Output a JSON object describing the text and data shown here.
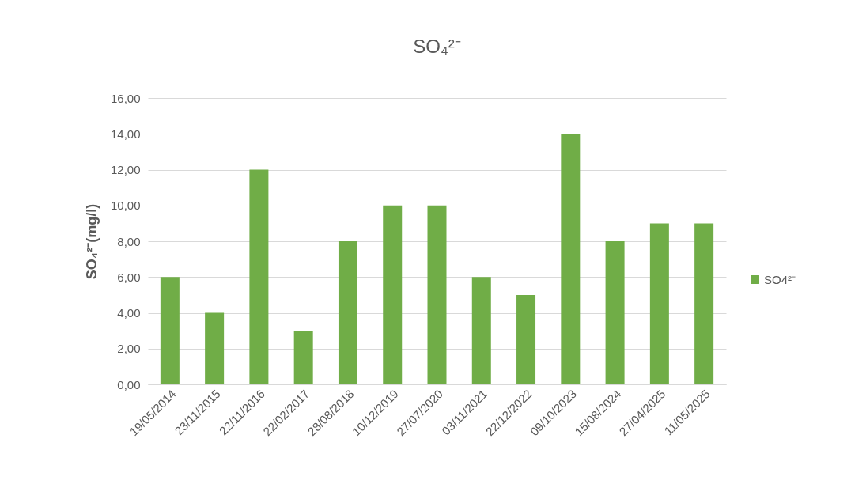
{
  "chart_data": {
    "type": "bar",
    "title": "SO₄²⁻",
    "ylabel": "SO₄²⁻(mg/l)",
    "categories": [
      "19/05/2014",
      "23/11/2015",
      "22/11/2016",
      "22/02/2017",
      "28/08/2018",
      "10/12/2019",
      "27/07/2020",
      "03/11/2021",
      "22/12/2022",
      "09/10/2023",
      "15/08/2024",
      "27/04/2025",
      "11/05/2025"
    ],
    "series": [
      {
        "name": "SO4²⁻",
        "color": "#70ad47",
        "values": [
          6,
          4,
          12,
          3,
          8,
          10,
          10,
          6,
          5,
          14,
          8,
          9,
          9
        ]
      }
    ],
    "ylim": [
      0,
      16
    ],
    "yticks": [
      {
        "value": 0,
        "label": "0,00"
      },
      {
        "value": 2,
        "label": "2,00"
      },
      {
        "value": 4,
        "label": "4,00"
      },
      {
        "value": 6,
        "label": "6,00"
      },
      {
        "value": 8,
        "label": "8,00"
      },
      {
        "value": 10,
        "label": "10,00"
      },
      {
        "value": 12,
        "label": "12,00"
      },
      {
        "value": 14,
        "label": "14,00"
      },
      {
        "value": 16,
        "label": "16,00"
      }
    ],
    "grid": "y",
    "legend": "right"
  }
}
